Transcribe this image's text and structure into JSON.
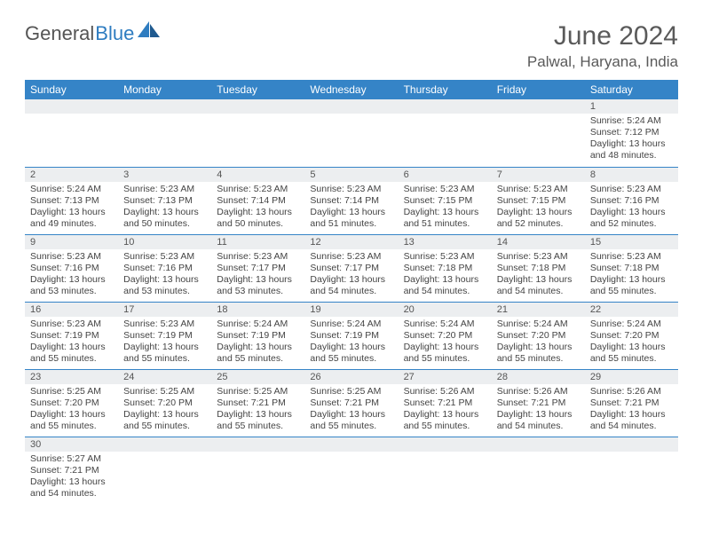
{
  "logo": {
    "general": "General",
    "blue": "Blue"
  },
  "title": "June 2024",
  "location": "Palwal, Haryana, India",
  "colors": {
    "header_bg": "#3584c7",
    "header_text": "#ffffff",
    "daynum_bg": "#eceef0",
    "border": "#3584c7",
    "text": "#444444",
    "title_text": "#5a5a5a"
  },
  "day_headers": [
    "Sunday",
    "Monday",
    "Tuesday",
    "Wednesday",
    "Thursday",
    "Friday",
    "Saturday"
  ],
  "weeks": [
    [
      null,
      null,
      null,
      null,
      null,
      null,
      {
        "n": "1",
        "sunrise": "5:24 AM",
        "sunset": "7:12 PM",
        "day_h": "13",
        "day_m": "48"
      }
    ],
    [
      {
        "n": "2",
        "sunrise": "5:24 AM",
        "sunset": "7:13 PM",
        "day_h": "13",
        "day_m": "49"
      },
      {
        "n": "3",
        "sunrise": "5:23 AM",
        "sunset": "7:13 PM",
        "day_h": "13",
        "day_m": "50"
      },
      {
        "n": "4",
        "sunrise": "5:23 AM",
        "sunset": "7:14 PM",
        "day_h": "13",
        "day_m": "50"
      },
      {
        "n": "5",
        "sunrise": "5:23 AM",
        "sunset": "7:14 PM",
        "day_h": "13",
        "day_m": "51"
      },
      {
        "n": "6",
        "sunrise": "5:23 AM",
        "sunset": "7:15 PM",
        "day_h": "13",
        "day_m": "51"
      },
      {
        "n": "7",
        "sunrise": "5:23 AM",
        "sunset": "7:15 PM",
        "day_h": "13",
        "day_m": "52"
      },
      {
        "n": "8",
        "sunrise": "5:23 AM",
        "sunset": "7:16 PM",
        "day_h": "13",
        "day_m": "52"
      }
    ],
    [
      {
        "n": "9",
        "sunrise": "5:23 AM",
        "sunset": "7:16 PM",
        "day_h": "13",
        "day_m": "53"
      },
      {
        "n": "10",
        "sunrise": "5:23 AM",
        "sunset": "7:16 PM",
        "day_h": "13",
        "day_m": "53"
      },
      {
        "n": "11",
        "sunrise": "5:23 AM",
        "sunset": "7:17 PM",
        "day_h": "13",
        "day_m": "53"
      },
      {
        "n": "12",
        "sunrise": "5:23 AM",
        "sunset": "7:17 PM",
        "day_h": "13",
        "day_m": "54"
      },
      {
        "n": "13",
        "sunrise": "5:23 AM",
        "sunset": "7:18 PM",
        "day_h": "13",
        "day_m": "54"
      },
      {
        "n": "14",
        "sunrise": "5:23 AM",
        "sunset": "7:18 PM",
        "day_h": "13",
        "day_m": "54"
      },
      {
        "n": "15",
        "sunrise": "5:23 AM",
        "sunset": "7:18 PM",
        "day_h": "13",
        "day_m": "55"
      }
    ],
    [
      {
        "n": "16",
        "sunrise": "5:23 AM",
        "sunset": "7:19 PM",
        "day_h": "13",
        "day_m": "55"
      },
      {
        "n": "17",
        "sunrise": "5:23 AM",
        "sunset": "7:19 PM",
        "day_h": "13",
        "day_m": "55"
      },
      {
        "n": "18",
        "sunrise": "5:24 AM",
        "sunset": "7:19 PM",
        "day_h": "13",
        "day_m": "55"
      },
      {
        "n": "19",
        "sunrise": "5:24 AM",
        "sunset": "7:19 PM",
        "day_h": "13",
        "day_m": "55"
      },
      {
        "n": "20",
        "sunrise": "5:24 AM",
        "sunset": "7:20 PM",
        "day_h": "13",
        "day_m": "55"
      },
      {
        "n": "21",
        "sunrise": "5:24 AM",
        "sunset": "7:20 PM",
        "day_h": "13",
        "day_m": "55"
      },
      {
        "n": "22",
        "sunrise": "5:24 AM",
        "sunset": "7:20 PM",
        "day_h": "13",
        "day_m": "55"
      }
    ],
    [
      {
        "n": "23",
        "sunrise": "5:25 AM",
        "sunset": "7:20 PM",
        "day_h": "13",
        "day_m": "55"
      },
      {
        "n": "24",
        "sunrise": "5:25 AM",
        "sunset": "7:20 PM",
        "day_h": "13",
        "day_m": "55"
      },
      {
        "n": "25",
        "sunrise": "5:25 AM",
        "sunset": "7:21 PM",
        "day_h": "13",
        "day_m": "55"
      },
      {
        "n": "26",
        "sunrise": "5:25 AM",
        "sunset": "7:21 PM",
        "day_h": "13",
        "day_m": "55"
      },
      {
        "n": "27",
        "sunrise": "5:26 AM",
        "sunset": "7:21 PM",
        "day_h": "13",
        "day_m": "55"
      },
      {
        "n": "28",
        "sunrise": "5:26 AM",
        "sunset": "7:21 PM",
        "day_h": "13",
        "day_m": "54"
      },
      {
        "n": "29",
        "sunrise": "5:26 AM",
        "sunset": "7:21 PM",
        "day_h": "13",
        "day_m": "54"
      }
    ],
    [
      {
        "n": "30",
        "sunrise": "5:27 AM",
        "sunset": "7:21 PM",
        "day_h": "13",
        "day_m": "54"
      },
      null,
      null,
      null,
      null,
      null,
      null
    ]
  ],
  "labels": {
    "sunrise": "Sunrise:",
    "sunset": "Sunset:",
    "daylight_prefix": "Daylight:",
    "hours_word": "hours",
    "and_word": "and",
    "minutes_word": "minutes."
  }
}
